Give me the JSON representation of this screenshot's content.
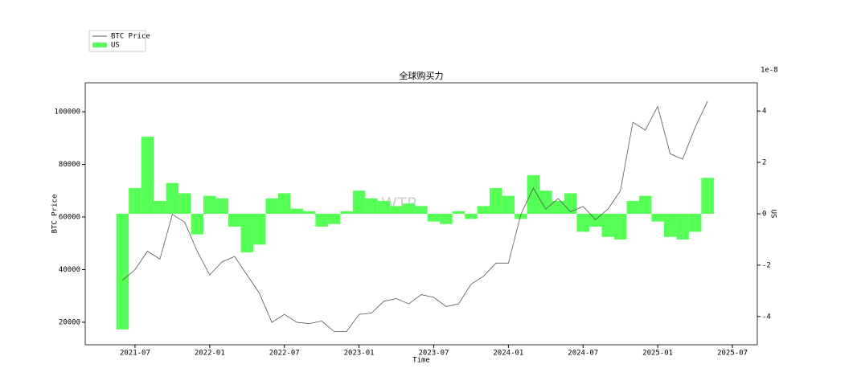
{
  "chart_data": {
    "type": "bar-line",
    "title": "全球购买力",
    "watermark": "WTR",
    "x_label": "Time",
    "y_label": "BTC Price",
    "y2_label": "US",
    "y2_offset_label": "1e-8",
    "x": [
      "2021-06",
      "2021-07",
      "2021-08",
      "2021-09",
      "2021-10",
      "2021-11",
      "2021-12",
      "2022-01",
      "2022-02",
      "2022-03",
      "2022-04",
      "2022-05",
      "2022-06",
      "2022-07",
      "2022-08",
      "2022-09",
      "2022-10",
      "2022-11",
      "2022-12",
      "2023-01",
      "2023-02",
      "2023-03",
      "2023-04",
      "2023-05",
      "2023-06",
      "2023-07",
      "2023-08",
      "2023-09",
      "2023-10",
      "2023-11",
      "2023-12",
      "2024-01",
      "2024-02",
      "2024-03",
      "2024-04",
      "2024-05",
      "2024-06",
      "2024-07",
      "2024-08",
      "2024-09",
      "2024-10",
      "2024-11",
      "2024-12",
      "2025-01",
      "2025-02",
      "2025-03",
      "2025-04",
      "2025-05"
    ],
    "series": [
      {
        "name": "BTC Price",
        "color": "#555555",
        "axis": "y",
        "values": [
          36000,
          40000,
          47000,
          44000,
          61000,
          58000,
          47000,
          38000,
          43000,
          45000,
          38000,
          31000,
          20000,
          23000,
          20000,
          19500,
          20500,
          16500,
          16500,
          23000,
          23500,
          28000,
          29000,
          27000,
          30500,
          29500,
          26000,
          27000,
          34500,
          37500,
          42500,
          42500,
          61000,
          71000,
          63000,
          67000,
          62000,
          64000,
          59000,
          63000,
          70000,
          96000,
          93000,
          102000,
          84000,
          82000,
          94000,
          104000
        ]
      },
      {
        "name": "US",
        "color": "#55ff55",
        "axis": "y2",
        "values": [
          -4.5,
          1.0,
          3.0,
          0.5,
          1.2,
          0.8,
          -0.8,
          0.7,
          0.6,
          -0.5,
          -1.5,
          -1.2,
          0.6,
          0.8,
          0.2,
          0.1,
          -0.5,
          -0.4,
          0.1,
          0.9,
          0.6,
          0.5,
          0.3,
          0.4,
          0.3,
          -0.3,
          -0.4,
          0.1,
          -0.2,
          0.3,
          1.0,
          0.7,
          -0.2,
          1.5,
          0.9,
          0.5,
          0.8,
          -0.7,
          -0.5,
          -0.9,
          -1.0,
          0.5,
          0.7,
          -0.3,
          -0.9,
          -1.0,
          -0.7,
          1.4
        ]
      }
    ],
    "xlim": [
      "2021-03",
      "2025-09"
    ],
    "xticks": [
      "2021-07",
      "2022-01",
      "2022-07",
      "2023-01",
      "2023-07",
      "2024-01",
      "2024-07",
      "2025-01",
      "2025-07"
    ],
    "ylim": [
      11450,
      111000
    ],
    "yticks": [
      20000,
      40000,
      60000,
      80000,
      100000
    ],
    "y2lim": [
      -5.1,
      5.1
    ],
    "y2ticks": [
      -4,
      -2,
      0,
      2,
      4
    ],
    "legend": "upper left outside"
  }
}
